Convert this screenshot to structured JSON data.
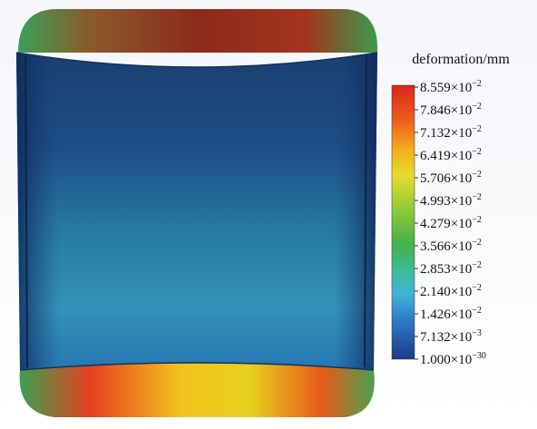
{
  "legend": {
    "title": "deformation/mm",
    "labels": [
      {
        "base": "8.559×10",
        "exp": "−2"
      },
      {
        "base": "7.846×10",
        "exp": "−2"
      },
      {
        "base": "7.132×10",
        "exp": "−2"
      },
      {
        "base": "6.419×10",
        "exp": "−2"
      },
      {
        "base": "5.706×10",
        "exp": "−2"
      },
      {
        "base": "4.993×10",
        "exp": "−2"
      },
      {
        "base": "4.279×10",
        "exp": "−2"
      },
      {
        "base": "3.566×10",
        "exp": "−2"
      },
      {
        "base": "2.853×10",
        "exp": "−2"
      },
      {
        "base": "2.140×10",
        "exp": "−2"
      },
      {
        "base": "1.426×10",
        "exp": "−2"
      },
      {
        "base": "7.132×10",
        "exp": "−3"
      },
      {
        "base": "1.000×10",
        "exp": "−30"
      }
    ]
  }
}
